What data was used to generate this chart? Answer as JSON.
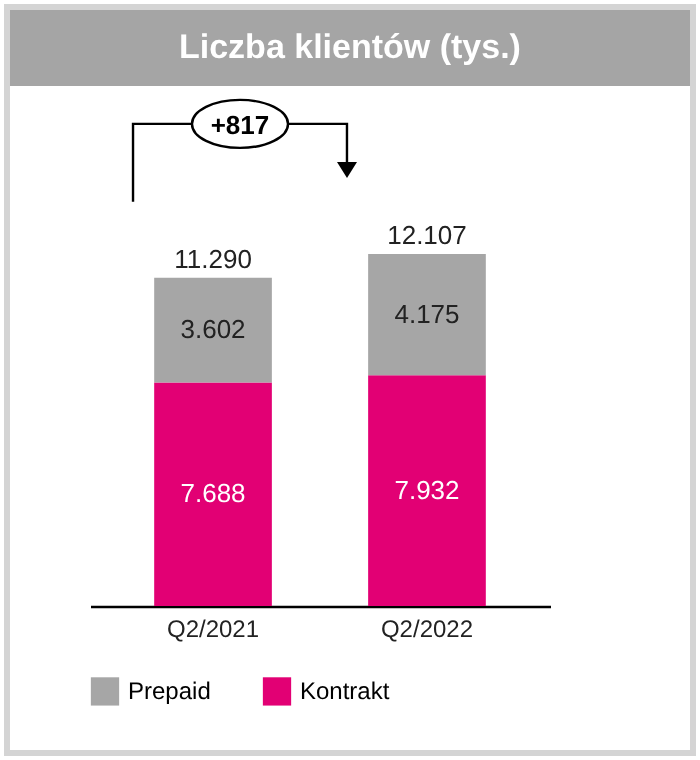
{
  "chart_data": {
    "type": "bar",
    "title": "Liczba klientów (tys.)",
    "categories": [
      "Q2/2021",
      "Q2/2022"
    ],
    "stacked": true,
    "series": [
      {
        "name": "Kontrakt",
        "color": "#e20074",
        "values": [
          7688,
          7932
        ],
        "value_labels": [
          "7.688",
          "7.932"
        ]
      },
      {
        "name": "Prepaid",
        "color": "#a6a6a6",
        "values": [
          3602,
          4175
        ],
        "value_labels": [
          "3.602",
          "4.175"
        ]
      }
    ],
    "totals": [
      "11.290",
      "12.107"
    ],
    "annotations": [
      "+817"
    ],
    "legend": "bottom"
  }
}
